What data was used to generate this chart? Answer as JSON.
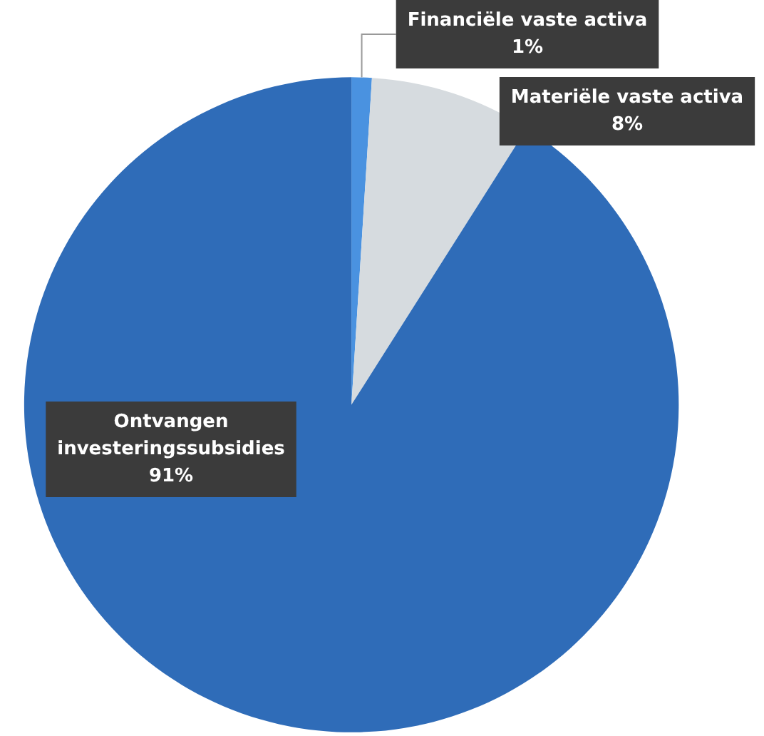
{
  "chart_data": {
    "type": "pie",
    "categories": [
      "Financiële vaste activa",
      "Materiële vaste activa",
      "Ontvangen investeringssubsidies"
    ],
    "values": [
      1,
      8,
      91
    ],
    "colors": [
      "#4a92e0",
      "#d6dbdf",
      "#2f6cb8"
    ],
    "value_labels": [
      "1%",
      "8%",
      "91%"
    ]
  }
}
